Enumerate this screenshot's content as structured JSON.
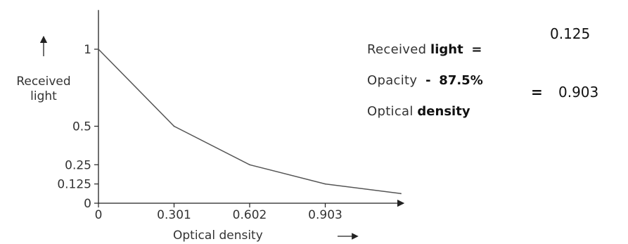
{
  "chart_data": {
    "type": "line",
    "x": [
      0,
      0.301,
      0.602,
      0.903,
      1.204
    ],
    "y": [
      1,
      0.5,
      0.25,
      0.125,
      0.0625
    ],
    "xticks": [
      "0",
      "0.301",
      "0.602",
      "0.903"
    ],
    "yticks": [
      {
        "value": 0,
        "label": "0"
      },
      {
        "value": 0.125,
        "label": "0.125"
      },
      {
        "value": 0.25,
        "label": "0.25"
      },
      {
        "value": 0.5,
        "label": "0.5"
      },
      {
        "value": 1,
        "label": "1"
      }
    ],
    "xlabel": "Optical density",
    "ylabel": [
      "Received",
      "light"
    ],
    "xlim": [
      0,
      1.204
    ],
    "ylim": [
      0,
      1.25
    ],
    "grid": false,
    "line_color": "#555555",
    "axis_color": "#222222"
  },
  "annotations": {
    "received_light_prefix": "Received",
    "received_light_bold": "light",
    "equals_1": "=",
    "value_1": "0.125",
    "opacity_label": "Opacity",
    "opacity_dash": "-",
    "opacity_value": "87.5%",
    "equals_2": "=",
    "value_2": "0.903",
    "optical_prefix": "Optical",
    "optical_bold": "density"
  }
}
